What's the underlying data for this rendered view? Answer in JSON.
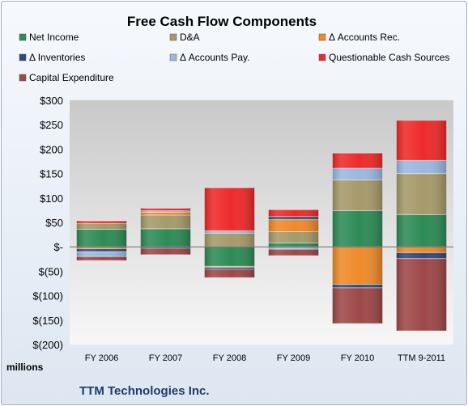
{
  "chart_data": {
    "type": "bar",
    "stacked": true,
    "title": "Free Cash Flow Components",
    "ylabel": "millions",
    "footer": "TTM Technologies Inc.",
    "categories": [
      "FY 2006",
      "FY 2007",
      "FY 2008",
      "FY 2009",
      "FY 2010",
      "TTM 9-2011"
    ],
    "ylim": [
      -200,
      300
    ],
    "yticks": [
      -200,
      -150,
      -100,
      -50,
      0,
      50,
      100,
      150,
      200,
      250,
      300
    ],
    "ytick_labels": [
      "$(200)",
      "$(150)",
      "$(100)",
      "$(50)",
      "$-",
      "$50",
      "$100",
      "$150",
      "$200",
      "$250",
      "$300"
    ],
    "legend_position": "top",
    "grid": false,
    "series": [
      {
        "name": "Net Income",
        "color": "#2e8b57",
        "values": [
          36,
          37,
          -40,
          8,
          74,
          66
        ]
      },
      {
        "name": "D&A",
        "color": "#a69a6a",
        "values": [
          12,
          28,
          28,
          23,
          63,
          84
        ]
      },
      {
        "name": "Δ Accounts Rec.",
        "color": "#ee8a2a",
        "values": [
          -4,
          6,
          -2,
          25,
          -77,
          -12
        ]
      },
      {
        "name": "Δ Inventories",
        "color": "#2f4a7a",
        "values": [
          -6,
          -3,
          -4,
          6,
          -7,
          -12
        ]
      },
      {
        "name": "Δ Accounts Pay.",
        "color": "#9bb8df",
        "values": [
          -10,
          3,
          5,
          -5,
          24,
          27
        ]
      },
      {
        "name": "Questionable Cash Sources",
        "color": "#ee2a2a",
        "values": [
          5,
          5,
          88,
          14,
          31,
          82
        ]
      },
      {
        "name": "Capital Expenditure",
        "color": "#9e4848",
        "values": [
          -8,
          -13,
          -17,
          -13,
          -73,
          -148
        ]
      }
    ]
  }
}
